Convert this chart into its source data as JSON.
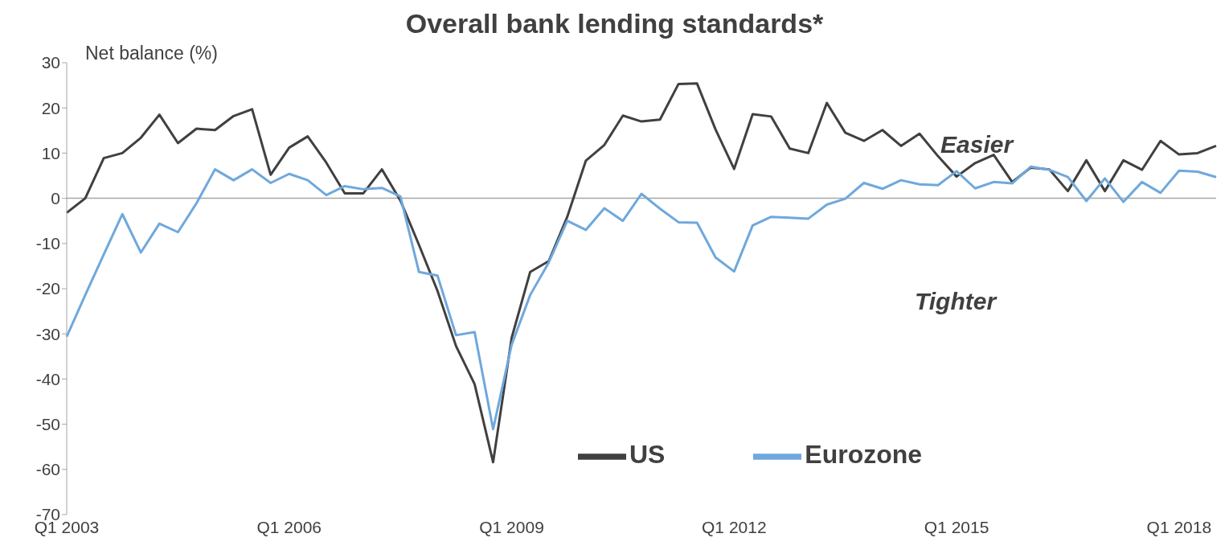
{
  "chart_data": {
    "type": "line",
    "title": "Overall bank lending standards*",
    "ylabel": "Net balance (%)",
    "annotations": [
      "Easier",
      "Tighter"
    ],
    "categories": [
      "Q1 2003",
      null,
      null,
      null,
      null,
      null,
      null,
      null,
      null,
      null,
      null,
      null,
      "Q1 2006",
      null,
      null,
      null,
      null,
      null,
      null,
      null,
      null,
      null,
      null,
      null,
      "Q1 2009",
      null,
      null,
      null,
      null,
      null,
      null,
      null,
      null,
      null,
      null,
      null,
      "Q1 2012",
      null,
      null,
      null,
      null,
      null,
      null,
      null,
      null,
      null,
      null,
      null,
      "Q1 2015",
      null,
      null,
      null,
      null,
      null,
      null,
      null,
      null,
      null,
      null,
      null,
      "Q1 2018",
      null,
      null
    ],
    "series": [
      {
        "name": "US",
        "color": "#404040",
        "values": [
          -3.2,
          0,
          8.9,
          10.0,
          13.4,
          18.5,
          12.2,
          15.4,
          15.1,
          18.2,
          19.7,
          5.2,
          11.2,
          13.7,
          7.9,
          1.1,
          1.1,
          6.4,
          -0.5,
          -10.3,
          -20.5,
          -32.7,
          -41.1,
          -58.4,
          -30.9,
          -16.3,
          -13.9,
          -4.1,
          8.3,
          11.8,
          18.3,
          17.0,
          17.4,
          25.3,
          25.4,
          15.2,
          6.5,
          18.6,
          18.1,
          11.0,
          10.0,
          21.1,
          14.5,
          12.7,
          15.1,
          11.6,
          14.3,
          9.3,
          4.8,
          7.8,
          9.6,
          3.6,
          6.8,
          6.4,
          1.6,
          8.4,
          1.6,
          8.4,
          6.3,
          12.7,
          9.7,
          10.0,
          11.6
        ]
      },
      {
        "name": "Eurozone",
        "color": "#6fa8dc",
        "values": [
          -30.6,
          -21.4,
          -12.4,
          -3.5,
          -12.0,
          -5.6,
          -7.5,
          -1.1,
          6.4,
          4.0,
          6.4,
          3.4,
          5.4,
          4.0,
          0.7,
          2.7,
          2.0,
          2.3,
          0.4,
          -16.3,
          -17.1,
          -30.3,
          -29.6,
          -51.1,
          -32.4,
          -21.4,
          -14.2,
          -5.0,
          -7.0,
          -2.2,
          -5.0,
          1.0,
          -2.3,
          -5.3,
          -5.4,
          -13.1,
          -16.2,
          -6.0,
          -4.1,
          -4.3,
          -4.5,
          -1.4,
          -0.1,
          3.4,
          2.1,
          4.0,
          3.1,
          2.9,
          6.0,
          2.2,
          3.6,
          3.3,
          7.0,
          6.3,
          4.7,
          -0.6,
          4.4,
          -0.8,
          3.6,
          1.2,
          6.1,
          5.9,
          4.7
        ]
      }
    ],
    "ylim": [
      -70,
      30
    ],
    "yticks": [
      -70,
      -60,
      -50,
      -40,
      -30,
      -20,
      -10,
      0,
      10,
      20,
      30
    ],
    "legend": "bottom",
    "marker": "none",
    "line_style": "solid"
  }
}
